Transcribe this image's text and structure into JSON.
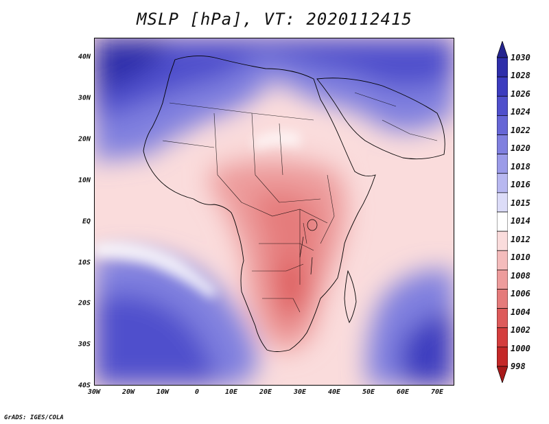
{
  "title": "MSLP [hPa], VT: 2020112415",
  "footer": "GrADS: IGES/COLA",
  "lat_labels": [
    "40N",
    "30N",
    "20N",
    "10N",
    "EQ",
    "10S",
    "20S",
    "30S",
    "40S"
  ],
  "lon_labels": [
    "30W",
    "20W",
    "10W",
    "0",
    "10E",
    "20E",
    "30E",
    "40E",
    "50E",
    "60E",
    "70E"
  ],
  "colorbar": {
    "labels": [
      "1030",
      "1028",
      "1026",
      "1024",
      "1022",
      "1020",
      "1018",
      "1016",
      "1015",
      "1014",
      "1012",
      "1010",
      "1008",
      "1006",
      "1004",
      "1002",
      "1000",
      "998"
    ],
    "colors": [
      "#24248f",
      "#2e2eaa",
      "#3c3cbf",
      "#5050cc",
      "#6666d6",
      "#8080df",
      "#9b9be8",
      "#b8b8f0",
      "#dcdcf8",
      "#ffffff",
      "#fadcdc",
      "#f4bcbc",
      "#ed9c9c",
      "#e57b7b",
      "#dd5a5a",
      "#d43d3d",
      "#c42828",
      "#a81a1a"
    ]
  },
  "map": {
    "region": "Africa",
    "lon_range": [
      -30,
      75
    ],
    "lat_range": [
      -40,
      45
    ],
    "field": "MSLP",
    "units": "hPa",
    "valid_time": "2020112415"
  }
}
